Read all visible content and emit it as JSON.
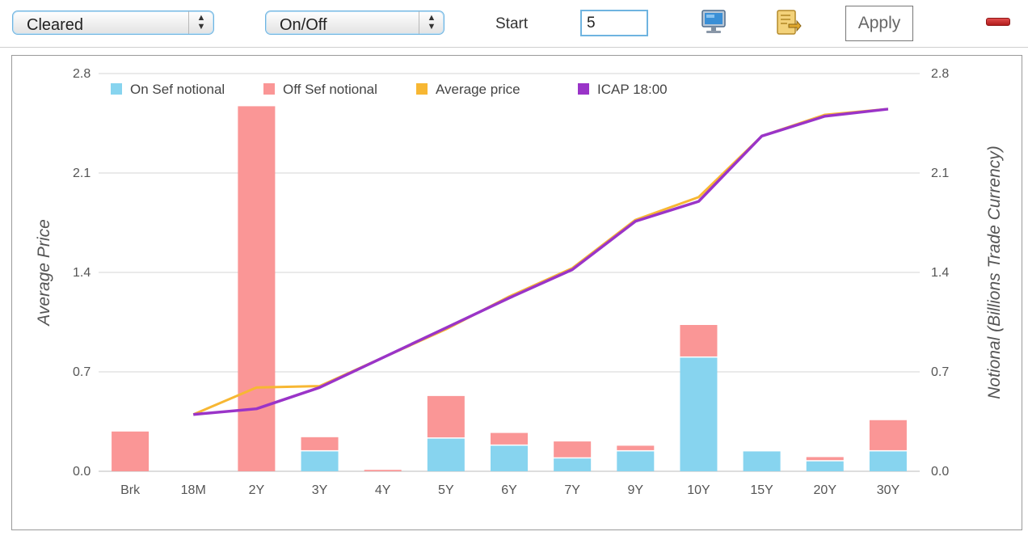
{
  "toolbar": {
    "clear_select": "Cleared",
    "sef_select": "On/Off",
    "start_label": "Start",
    "start_value": "5",
    "apply_label": "Apply",
    "icons": [
      "monitor-icon",
      "export-icon",
      "remove-icon"
    ]
  },
  "chart_data": {
    "type": "bar",
    "categories": [
      "Brk",
      "18M",
      "2Y",
      "3Y",
      "4Y",
      "5Y",
      "6Y",
      "7Y",
      "9Y",
      "10Y",
      "15Y",
      "20Y",
      "30Y"
    ],
    "series": [
      {
        "name": "On Sef notional",
        "type": "bar",
        "stack": "notional",
        "color": "#87d4ef",
        "values": [
          0,
          0,
          0,
          0.14,
          0,
          0.23,
          0.18,
          0.09,
          0.14,
          0.8,
          0.14,
          0.07,
          0.14
        ]
      },
      {
        "name": "Off Sef notional",
        "type": "bar",
        "stack": "notional",
        "color": "#fa9696",
        "values": [
          0.28,
          0,
          2.57,
          0.1,
          0.01,
          0.3,
          0.09,
          0.12,
          0.04,
          0.23,
          0,
          0.03,
          0.22
        ]
      },
      {
        "name": "Average price",
        "type": "line",
        "color": "#f7b733",
        "values": [
          null,
          0.4,
          0.59,
          0.6,
          0.8,
          1.0,
          1.23,
          1.43,
          1.77,
          1.93,
          2.36,
          2.51,
          2.55
        ]
      },
      {
        "name": "ICAP 18:00",
        "type": "line",
        "color": "#9a34c8",
        "values": [
          null,
          0.4,
          0.44,
          0.59,
          0.8,
          1.01,
          1.22,
          1.42,
          1.76,
          1.9,
          2.36,
          2.5,
          2.55
        ]
      }
    ],
    "ylabel": "Average Price",
    "y2label": "Notional (Billions Trade Currency)",
    "ylim": [
      0,
      2.8
    ],
    "y2lim": [
      0,
      2.8
    ],
    "yticks": [
      "0.0",
      "0.7",
      "1.4",
      "2.1",
      "2.8"
    ],
    "y2ticks": [
      "0.0",
      "0.7",
      "1.4",
      "2.1",
      "2.8"
    ],
    "grid": true,
    "legend": "top-left"
  }
}
